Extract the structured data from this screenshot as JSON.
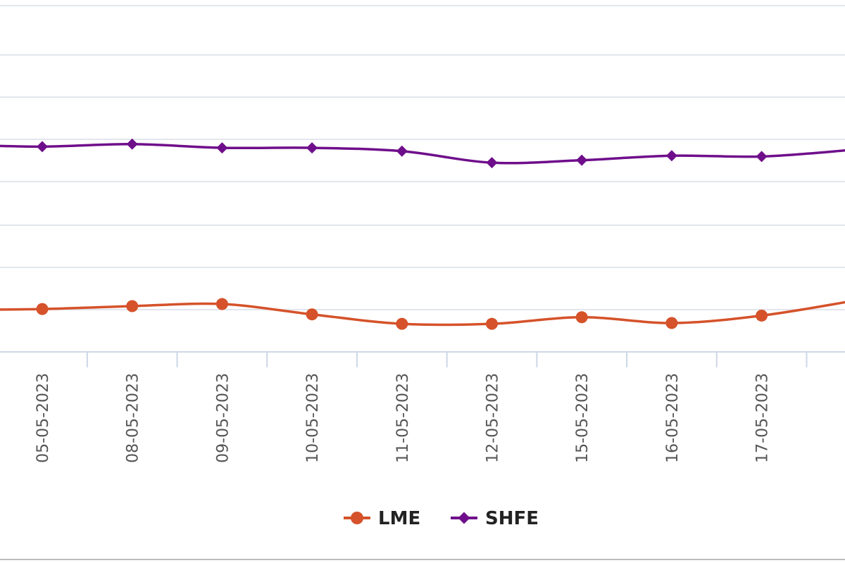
{
  "chart_data": {
    "type": "line",
    "categories": [
      "05-05-2023",
      "08-05-2023",
      "09-05-2023",
      "10-05-2023",
      "11-05-2023",
      "12-05-2023",
      "15-05-2023",
      "16-05-2023",
      "17-05-2023"
    ],
    "series": [
      {
        "name": "LME",
        "color": "#d5522a",
        "marker": "circle",
        "values": [
          38.4,
          39.1,
          39.6,
          37.1,
          34.8,
          34.8,
          36.4,
          35.0,
          36.8
        ]
      },
      {
        "name": "SHFE",
        "color": "#6f0e8b",
        "marker": "diamond",
        "values": [
          77.8,
          78.4,
          77.5,
          77.5,
          76.7,
          73.9,
          74.5,
          75.6,
          75.4
        ]
      }
    ],
    "ylim": [
      28,
      112
    ],
    "grid": true,
    "legend_position": "bottom-center"
  }
}
